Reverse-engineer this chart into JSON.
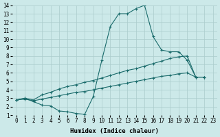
{
  "xlabel": "Humidex (Indice chaleur)",
  "bg_color": "#cce9e9",
  "grid_color": "#aacccc",
  "line_color": "#1a6b6b",
  "xlim": [
    -0.5,
    23.5
  ],
  "ylim": [
    1,
    14
  ],
  "xticks": [
    0,
    1,
    2,
    3,
    4,
    5,
    6,
    7,
    8,
    9,
    10,
    11,
    12,
    13,
    14,
    15,
    16,
    17,
    18,
    19,
    20,
    21,
    22,
    23
  ],
  "yticks": [
    1,
    2,
    3,
    4,
    5,
    6,
    7,
    8,
    9,
    10,
    11,
    12,
    13,
    14
  ],
  "series": [
    {
      "x": [
        0,
        1,
        2,
        3,
        4,
        5,
        6,
        7,
        8,
        9,
        10,
        11,
        12,
        13,
        14,
        15,
        16,
        17,
        18,
        19,
        20,
        21,
        22
      ],
      "y": [
        2.8,
        3.0,
        2.6,
        2.2,
        2.1,
        1.5,
        1.4,
        1.2,
        1.1,
        3.2,
        7.5,
        11.5,
        13.0,
        13.0,
        13.6,
        14.0,
        10.3,
        8.7,
        8.5,
        8.5,
        7.5,
        5.5,
        5.5
      ]
    },
    {
      "x": [
        0,
        1,
        2,
        3,
        4,
        5,
        6,
        7,
        8,
        9,
        10,
        11,
        12,
        13,
        14,
        15,
        16,
        17,
        18,
        19,
        20,
        21,
        22
      ],
      "y": [
        2.8,
        3.0,
        2.8,
        3.4,
        3.7,
        4.1,
        4.4,
        4.6,
        4.9,
        5.1,
        5.4,
        5.7,
        6.0,
        6.3,
        6.5,
        6.8,
        7.1,
        7.4,
        7.7,
        7.9,
        8.0,
        5.5,
        5.5
      ]
    },
    {
      "x": [
        0,
        1,
        2,
        3,
        4,
        5,
        6,
        7,
        8,
        9,
        10,
        11,
        12,
        13,
        14,
        15,
        16,
        17,
        18,
        19,
        20,
        21,
        22
      ],
      "y": [
        2.8,
        2.9,
        2.7,
        2.9,
        3.1,
        3.3,
        3.5,
        3.7,
        3.8,
        4.0,
        4.2,
        4.4,
        4.6,
        4.8,
        5.0,
        5.2,
        5.4,
        5.6,
        5.7,
        5.9,
        6.0,
        5.5,
        5.5
      ]
    }
  ],
  "tick_fontsize": 5.5,
  "xlabel_fontsize": 6.5
}
